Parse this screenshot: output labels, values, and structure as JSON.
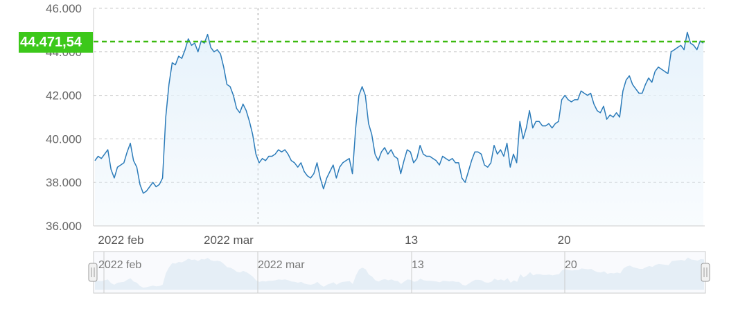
{
  "chart_data": {
    "type": "area",
    "y_ticks": [
      "36.000",
      "38.000",
      "40.000",
      "42.000",
      "44.000",
      "46.000"
    ],
    "y_tick_values": [
      36000,
      38000,
      40000,
      42000,
      44000,
      46000
    ],
    "ylim": [
      36000,
      46000
    ],
    "x_ticks": [
      "2022 feb",
      "2022 mar",
      "13",
      "20"
    ],
    "navigator_ticks": [
      "2022 feb",
      "2022 mar",
      "13",
      "20"
    ],
    "current_value": 44471.54,
    "current_value_label": "44.471,54",
    "grid": true,
    "colors": {
      "line": "#2b7bb9",
      "area": "#e6f2fb",
      "current_line": "#3cba10",
      "current_label_bg": "#3cc81a",
      "grid": "#c8c8c8",
      "axis": "#cccccc"
    },
    "series": [
      {
        "values": [
          39000,
          39200,
          39100,
          39300,
          39500,
          38600,
          38200,
          38700,
          38800,
          38900,
          39400,
          39800,
          39000,
          38700,
          37900,
          37500,
          37600,
          37800,
          38000,
          37800,
          37900,
          38200,
          41000,
          42500,
          43500,
          43400,
          43800,
          43700,
          44100,
          44600,
          44300,
          44400,
          44000,
          44500,
          44400,
          44800,
          44200,
          44000,
          44100,
          43900,
          43300,
          42500,
          42400,
          42000,
          41400,
          41200,
          41600,
          41300,
          40800,
          40200,
          39300,
          38900,
          39100,
          39000,
          39200,
          39200,
          39300,
          39500,
          39400,
          39500,
          39300,
          39000,
          38900,
          38700,
          38900,
          38500,
          38300,
          38200,
          38400,
          38900,
          38200,
          37700,
          38200,
          38500,
          38800,
          38200,
          38700,
          38900,
          39000,
          39100,
          38400,
          40500,
          42000,
          42400,
          42000,
          40700,
          40200,
          39300,
          39000,
          39400,
          39600,
          39300,
          39500,
          39200,
          39100,
          38400,
          39000,
          39500,
          39400,
          38900,
          39100,
          39700,
          39300,
          39200,
          39200,
          39100,
          39000,
          38800,
          39200,
          39100,
          39000,
          39100,
          38900,
          38900,
          38200,
          38000,
          38500,
          39000,
          39400,
          39400,
          39300,
          38800,
          38700,
          38900,
          39700,
          39300,
          39500,
          39200,
          39800,
          38700,
          39300,
          38900,
          40800,
          40000,
          40500,
          41300,
          40500,
          40800,
          40800,
          40600,
          40600,
          40700,
          40500,
          40700,
          40800,
          41800,
          42000,
          41800,
          41700,
          41800,
          41800,
          42200,
          42100,
          42000,
          42100,
          41600,
          41300,
          41200,
          41500,
          40900,
          41100,
          41000,
          41200,
          41000,
          42200,
          42700,
          42900,
          42500,
          42300,
          42100,
          42100,
          42500,
          42800,
          42600,
          43100,
          43300,
          43200,
          43100,
          43000,
          44000,
          44100,
          44200,
          44300,
          44100,
          44900,
          44400,
          44300,
          44100,
          44500,
          44400
        ]
      }
    ]
  }
}
